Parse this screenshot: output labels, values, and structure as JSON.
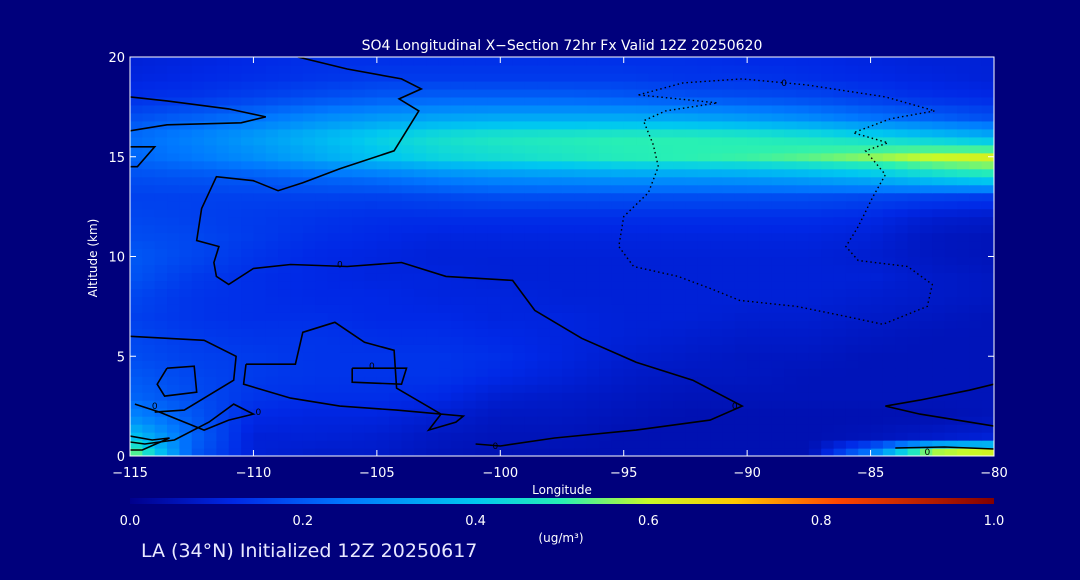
{
  "chart_data": {
    "type": "heatmap",
    "title": "SO4 Longitudinal X−Section 72hr  Fx Valid 12Z 20250620",
    "xlabel": "Longitude",
    "ylabel": "Altitude (km)",
    "xlim": [
      -115,
      -80
    ],
    "ylim": [
      0,
      20
    ],
    "x_ticks": [
      -115,
      -110,
      -105,
      -100,
      -95,
      -90,
      -85,
      -80
    ],
    "x_tick_labels": [
      "−115",
      "−110",
      "−105",
      "−100",
      "−95",
      "−90",
      "−85",
      "−80"
    ],
    "y_ticks": [
      0,
      5,
      10,
      15,
      20
    ],
    "y_tick_labels": [
      "0",
      "5",
      "10",
      "15",
      "20"
    ],
    "colorbar": {
      "label": "(ug/m³)",
      "min": 0.0,
      "max": 1.0,
      "ticks": [
        0.0,
        0.2,
        0.4,
        0.6,
        0.8,
        1.0
      ],
      "tick_labels": [
        "0.0",
        "0.2",
        "0.4",
        "0.6",
        "0.8",
        "1.0"
      ],
      "colormap": "rainbow"
    },
    "grid_lon": [
      -115,
      -112.5,
      -110,
      -107.5,
      -105,
      -102.5,
      -100,
      -97.5,
      -95,
      -92.5,
      -90,
      -87.5,
      -85,
      -82.5,
      -80
    ],
    "grid_alt": [
      0,
      1,
      2,
      3,
      4,
      5,
      6,
      7,
      8,
      9,
      10,
      11,
      12,
      13,
      14,
      15,
      16,
      17,
      18,
      19,
      20
    ],
    "values": [
      [
        0.6,
        0.2,
        0.1,
        0.08,
        0.08,
        0.06,
        0.05,
        0.05,
        0.05,
        0.05,
        0.05,
        0.05,
        0.3,
        0.7,
        0.75
      ],
      [
        0.4,
        0.22,
        0.1,
        0.1,
        0.09,
        0.07,
        0.06,
        0.06,
        0.05,
        0.05,
        0.05,
        0.05,
        0.06,
        0.08,
        0.1
      ],
      [
        0.28,
        0.2,
        0.12,
        0.11,
        0.11,
        0.09,
        0.07,
        0.07,
        0.06,
        0.05,
        0.05,
        0.05,
        0.05,
        0.05,
        0.06
      ],
      [
        0.22,
        0.18,
        0.14,
        0.13,
        0.13,
        0.12,
        0.09,
        0.08,
        0.07,
        0.06,
        0.06,
        0.06,
        0.06,
        0.06,
        0.06
      ],
      [
        0.2,
        0.17,
        0.15,
        0.14,
        0.14,
        0.14,
        0.12,
        0.1,
        0.08,
        0.07,
        0.07,
        0.06,
        0.06,
        0.06,
        0.06
      ],
      [
        0.18,
        0.16,
        0.15,
        0.14,
        0.14,
        0.14,
        0.13,
        0.11,
        0.09,
        0.08,
        0.07,
        0.07,
        0.06,
        0.06,
        0.06
      ],
      [
        0.17,
        0.15,
        0.14,
        0.14,
        0.13,
        0.13,
        0.12,
        0.11,
        0.1,
        0.09,
        0.08,
        0.08,
        0.07,
        0.06,
        0.06
      ],
      [
        0.16,
        0.14,
        0.13,
        0.13,
        0.12,
        0.12,
        0.11,
        0.11,
        0.1,
        0.1,
        0.09,
        0.09,
        0.08,
        0.07,
        0.06
      ],
      [
        0.17,
        0.14,
        0.13,
        0.12,
        0.12,
        0.11,
        0.11,
        0.1,
        0.1,
        0.1,
        0.1,
        0.1,
        0.09,
        0.08,
        0.07
      ],
      [
        0.19,
        0.15,
        0.13,
        0.12,
        0.11,
        0.11,
        0.1,
        0.1,
        0.1,
        0.1,
        0.1,
        0.1,
        0.1,
        0.08,
        0.07
      ],
      [
        0.2,
        0.17,
        0.14,
        0.12,
        0.11,
        0.1,
        0.1,
        0.1,
        0.1,
        0.1,
        0.1,
        0.1,
        0.09,
        0.07,
        0.06
      ],
      [
        0.18,
        0.17,
        0.15,
        0.13,
        0.12,
        0.11,
        0.11,
        0.11,
        0.11,
        0.11,
        0.11,
        0.11,
        0.1,
        0.07,
        0.06
      ],
      [
        0.17,
        0.16,
        0.15,
        0.14,
        0.13,
        0.13,
        0.13,
        0.13,
        0.13,
        0.13,
        0.13,
        0.13,
        0.12,
        0.09,
        0.08
      ],
      [
        0.16,
        0.16,
        0.16,
        0.16,
        0.16,
        0.17,
        0.18,
        0.18,
        0.18,
        0.18,
        0.18,
        0.18,
        0.17,
        0.16,
        0.15
      ],
      [
        0.18,
        0.19,
        0.2,
        0.22,
        0.24,
        0.27,
        0.29,
        0.3,
        0.31,
        0.31,
        0.32,
        0.34,
        0.37,
        0.42,
        0.46
      ],
      [
        0.22,
        0.25,
        0.29,
        0.34,
        0.39,
        0.43,
        0.45,
        0.47,
        0.49,
        0.5,
        0.51,
        0.53,
        0.56,
        0.6,
        0.62
      ],
      [
        0.23,
        0.27,
        0.32,
        0.37,
        0.42,
        0.46,
        0.48,
        0.49,
        0.5,
        0.5,
        0.49,
        0.47,
        0.44,
        0.4,
        0.36
      ],
      [
        0.18,
        0.21,
        0.24,
        0.28,
        0.31,
        0.33,
        0.34,
        0.34,
        0.34,
        0.33,
        0.31,
        0.28,
        0.24,
        0.21,
        0.18
      ],
      [
        0.13,
        0.14,
        0.16,
        0.18,
        0.2,
        0.21,
        0.21,
        0.21,
        0.2,
        0.19,
        0.18,
        0.17,
        0.15,
        0.13,
        0.12
      ],
      [
        0.11,
        0.12,
        0.13,
        0.14,
        0.15,
        0.15,
        0.15,
        0.15,
        0.15,
        0.14,
        0.14,
        0.13,
        0.12,
        0.11,
        0.1
      ],
      [
        0.1,
        0.11,
        0.12,
        0.13,
        0.13,
        0.13,
        0.13,
        0.13,
        0.13,
        0.13,
        0.12,
        0.12,
        0.11,
        0.1,
        0.1
      ]
    ],
    "contours": [
      {
        "style": "solid",
        "label": "0",
        "points": [
          [
            -115,
            18.0
          ],
          [
            -113.5,
            17.8
          ],
          [
            -111,
            17.4
          ],
          [
            -109.5,
            17.0
          ],
          [
            -110.5,
            16.7
          ],
          [
            -113.5,
            16.6
          ],
          [
            -115,
            16.3
          ]
        ]
      },
      {
        "style": "solid",
        "label": "0",
        "points": [
          [
            -108.2,
            20.0
          ],
          [
            -106.2,
            19.4
          ],
          [
            -104,
            18.9
          ],
          [
            -103.2,
            18.4
          ],
          [
            -104.1,
            17.9
          ],
          [
            -103.3,
            17.3
          ],
          [
            -103.8,
            16.3
          ],
          [
            -104.3,
            15.3
          ],
          [
            -106.5,
            14.4
          ],
          [
            -108,
            13.7
          ],
          [
            -109,
            13.3
          ],
          [
            -110,
            13.8
          ],
          [
            -111.5,
            14.0
          ],
          [
            -112.1,
            12.4
          ],
          [
            -112.3,
            10.8
          ],
          [
            -111.4,
            10.5
          ],
          [
            -111.6,
            9.7
          ],
          [
            -111.5,
            9.0
          ],
          [
            -111,
            8.6
          ],
          [
            -110,
            9.4
          ],
          [
            -108.5,
            9.6
          ],
          [
            -106.2,
            9.5
          ],
          [
            -104,
            9.7
          ],
          [
            -102.2,
            9.0
          ],
          [
            -99.5,
            8.8
          ],
          [
            -98.6,
            7.3
          ],
          [
            -96.7,
            5.9
          ],
          [
            -94.5,
            4.7
          ],
          [
            -92.2,
            3.8
          ],
          [
            -90.2,
            2.5
          ],
          [
            -91.5,
            1.8
          ],
          [
            -94.5,
            1.3
          ],
          [
            -97.8,
            0.9
          ],
          [
            -100,
            0.5
          ],
          [
            -101,
            0.6
          ]
        ]
      },
      {
        "style": "solid",
        "label": "0",
        "points": [
          [
            -115,
            15.5
          ],
          [
            -114,
            15.5
          ],
          [
            -114.7,
            14.5
          ],
          [
            -115,
            14.5
          ]
        ]
      },
      {
        "style": "solid",
        "label": "0",
        "points": [
          [
            -115,
            6.0
          ],
          [
            -112,
            5.8
          ],
          [
            -110.7,
            5.0
          ],
          [
            -110.8,
            3.8
          ],
          [
            -112.8,
            2.3
          ],
          [
            -114,
            2.2
          ]
        ]
      },
      {
        "style": "solid",
        "label": "0",
        "points": [
          [
            -113.5,
            4.4
          ],
          [
            -112.4,
            4.5
          ],
          [
            -112.3,
            3.2
          ],
          [
            -113.6,
            3.0
          ],
          [
            -113.9,
            3.6
          ],
          [
            -113.5,
            4.4
          ]
        ]
      },
      {
        "style": "solid",
        "label": "0",
        "points": [
          [
            -110.3,
            4.6
          ],
          [
            -108.3,
            4.6
          ],
          [
            -108,
            6.2
          ],
          [
            -106.7,
            6.7
          ],
          [
            -105.5,
            5.7
          ],
          [
            -104.3,
            5.3
          ],
          [
            -104.2,
            3.4
          ],
          [
            -102.4,
            2.1
          ],
          [
            -102.9,
            1.3
          ],
          [
            -101.8,
            1.7
          ],
          [
            -101.5,
            2.0
          ],
          [
            -104.2,
            2.3
          ],
          [
            -106.5,
            2.5
          ],
          [
            -108.5,
            2.9
          ],
          [
            -110.4,
            3.6
          ],
          [
            -110.3,
            4.6
          ]
        ]
      },
      {
        "style": "solid",
        "label": "0",
        "points": [
          [
            -106,
            4.4
          ],
          [
            -103.8,
            4.4
          ],
          [
            -104,
            3.6
          ],
          [
            -106,
            3.7
          ],
          [
            -106,
            4.4
          ]
        ]
      },
      {
        "style": "solid",
        "label": "0",
        "points": [
          [
            -114.8,
            2.6
          ],
          [
            -113.8,
            2.2
          ],
          [
            -112.8,
            1.7
          ],
          [
            -112,
            1.3
          ],
          [
            -111,
            1.8
          ],
          [
            -110,
            2.1
          ],
          [
            -110.8,
            2.6
          ],
          [
            -111.8,
            1.7
          ],
          [
            -113.2,
            0.8
          ],
          [
            -114.4,
            0.6
          ],
          [
            -115,
            0.7
          ]
        ]
      },
      {
        "style": "solid",
        "label": "0",
        "points": [
          [
            -80,
            3.6
          ],
          [
            -81,
            3.3
          ],
          [
            -83,
            2.8
          ],
          [
            -84.4,
            2.5
          ],
          [
            -83,
            2.1
          ],
          [
            -81,
            1.7
          ],
          [
            -80,
            1.5
          ]
        ]
      },
      {
        "style": "solid",
        "label": "0.1",
        "points": [
          [
            -115,
            1.0
          ],
          [
            -114.1,
            0.8
          ],
          [
            -113.4,
            0.9
          ],
          [
            -114.5,
            0.3
          ],
          [
            -115,
            0.3
          ]
        ]
      },
      {
        "style": "solid",
        "label": "0.1",
        "points": [
          [
            -84,
            0.4
          ],
          [
            -82,
            0.45
          ],
          [
            -80,
            0.35
          ]
        ]
      },
      {
        "style": "dotted",
        "label": "0",
        "points": [
          [
            -94.4,
            18.1
          ],
          [
            -92.6,
            18.7
          ],
          [
            -90.2,
            18.9
          ],
          [
            -87.6,
            18.6
          ],
          [
            -84.4,
            18.0
          ],
          [
            -82.4,
            17.3
          ],
          [
            -84.2,
            16.9
          ],
          [
            -85.7,
            16.2
          ],
          [
            -84.3,
            15.7
          ],
          [
            -85.2,
            15.3
          ],
          [
            -84.4,
            14.1
          ],
          [
            -84.9,
            13.0
          ],
          [
            -85.5,
            11.5
          ],
          [
            -86,
            10.5
          ],
          [
            -85.5,
            9.8
          ],
          [
            -83.5,
            9.5
          ],
          [
            -82.5,
            8.6
          ],
          [
            -82.7,
            7.5
          ],
          [
            -84.5,
            6.6
          ],
          [
            -86,
            7.0
          ],
          [
            -88,
            7.5
          ],
          [
            -90.3,
            7.8
          ],
          [
            -91.5,
            8.4
          ],
          [
            -92.8,
            9.0
          ],
          [
            -94.6,
            9.5
          ],
          [
            -95.2,
            10.5
          ],
          [
            -95,
            12.0
          ],
          [
            -94,
            13.2
          ],
          [
            -93.6,
            14.5
          ],
          [
            -93.8,
            15.6
          ],
          [
            -94.2,
            16.8
          ],
          [
            -93.3,
            17.3
          ],
          [
            -91.2,
            17.7
          ],
          [
            -94.4,
            18.1
          ]
        ]
      }
    ],
    "contour_labels": [
      {
        "text": "0",
        "x": -106.5,
        "y": 9.6
      },
      {
        "text": "0",
        "x": -90.5,
        "y": 2.5
      },
      {
        "text": "0",
        "x": -109.8,
        "y": 2.2
      },
      {
        "text": "0",
        "x": -105.2,
        "y": 4.5
      },
      {
        "text": "0",
        "x": -114,
        "y": 2.5
      },
      {
        "text": "0",
        "x": -100.2,
        "y": 0.5
      },
      {
        "text": "0",
        "x": -82.7,
        "y": 0.2
      },
      {
        "text": "0",
        "x": -88.5,
        "y": 18.7
      }
    ],
    "grid": false,
    "legend": "none"
  },
  "footer": {
    "text": "LA (34°N) Initialized 12Z 20250617"
  },
  "colors": {
    "background": "#00007c",
    "contour": "#000000",
    "axis": "#ffffff"
  }
}
